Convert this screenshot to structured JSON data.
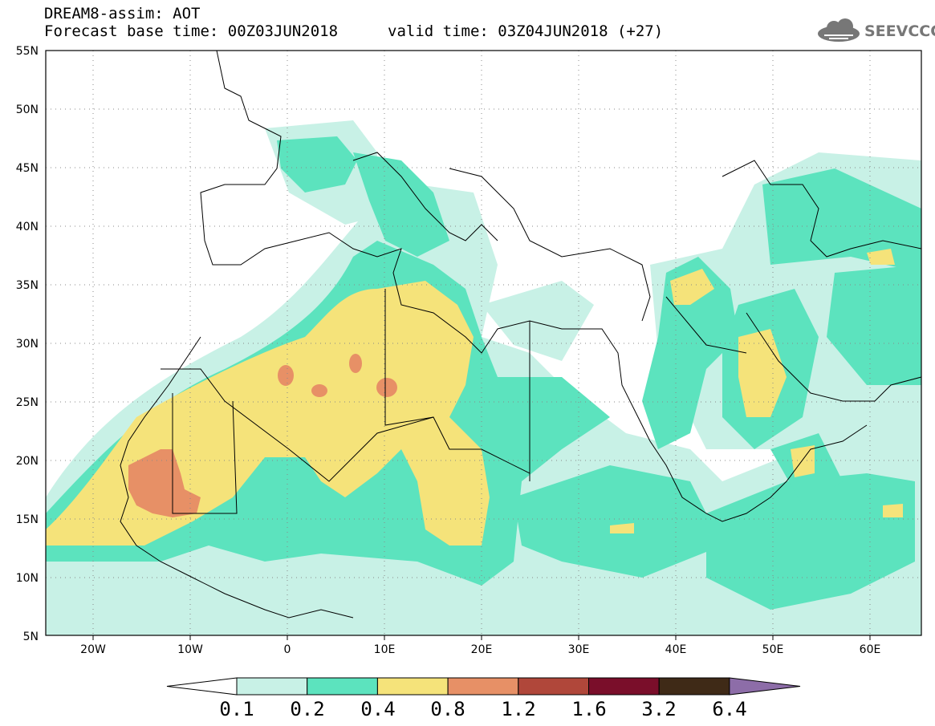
{
  "header": {
    "title_line1": "DREAM8-assim: AOT",
    "title_line2": "Forecast base time: 00Z03JUN2018",
    "valid_time": "valid time: 03Z04JUN2018 (+27)",
    "logo_text": "SEEVCCC"
  },
  "map": {
    "projection": "lat-lon",
    "lon_range": [
      -25,
      65
    ],
    "lat_range": [
      5,
      55
    ],
    "lat_ticks": [
      "55N",
      "50N",
      "45N",
      "40N",
      "35N",
      "30N",
      "25N",
      "20N",
      "15N",
      "10N",
      "5N"
    ],
    "lon_ticks": [
      "20W",
      "10W",
      "0",
      "10E",
      "20E",
      "30E",
      "40E",
      "50E",
      "60E"
    ],
    "gridlines": "dotted",
    "field": "aerosol optical thickness"
  },
  "colorbar": {
    "labels": [
      "0.1",
      "0.2",
      "0.4",
      "0.8",
      "1.2",
      "1.6",
      "3.2",
      "6.4"
    ],
    "colors": [
      "#ffffff",
      "#c8f1e6",
      "#5ce3be",
      "#f5e37a",
      "#e79066",
      "#b0473a",
      "#7a0e2a",
      "#3f2a17",
      "#8d6da8"
    ]
  }
}
